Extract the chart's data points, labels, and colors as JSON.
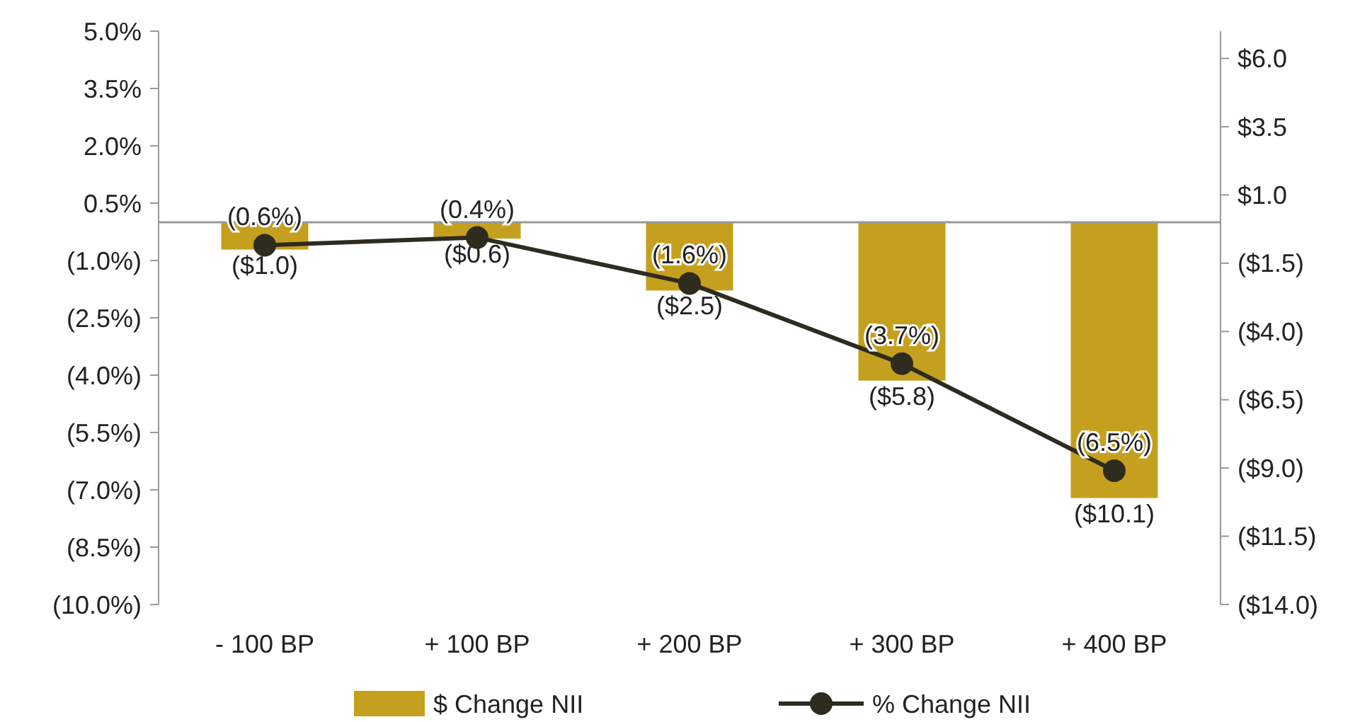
{
  "chart_data": {
    "type": "bar",
    "categories": [
      "- 100 BP",
      "+ 100 BP",
      "+ 200 BP",
      "+ 300 BP",
      "+ 400 BP"
    ],
    "series": [
      {
        "name": "$ Change NII",
        "axis": "y2",
        "color": "#c5a01f",
        "values": [
          -1.0,
          -0.6,
          -2.5,
          -5.8,
          -10.1
        ],
        "value_labels": [
          "($1.0)",
          "($0.6)",
          "($2.5)",
          "($5.8)",
          "($10.1)"
        ]
      },
      {
        "name": "% Change NII",
        "type": "line",
        "axis": "y",
        "color": "#2e2b1f",
        "values": [
          -0.6,
          -0.4,
          -1.6,
          -3.7,
          -6.5
        ],
        "value_labels": [
          "(0.6%)",
          "(0.4%)",
          "(1.6%)",
          "(3.7%)",
          "(6.5%)"
        ]
      }
    ],
    "ylim": [
      -10,
      5
    ],
    "yticks": [
      {
        "value": 5,
        "label": "5.0%"
      },
      {
        "value": 3.5,
        "label": "3.5%"
      },
      {
        "value": 2,
        "label": "2.0%"
      },
      {
        "value": 0.5,
        "label": "0.5%"
      },
      {
        "value": -1,
        "label": "(1.0%)"
      },
      {
        "value": -2.5,
        "label": "(2.5%)"
      },
      {
        "value": -4,
        "label": "(4.0%)"
      },
      {
        "value": -5.5,
        "label": "(5.5%)"
      },
      {
        "value": -7,
        "label": "(7.0%)"
      },
      {
        "value": -8.5,
        "label": "(8.5%)"
      },
      {
        "value": -10,
        "label": "(10.0%)"
      }
    ],
    "y2lim": [
      -14,
      7
    ],
    "y2ticks": [
      {
        "value": 6,
        "label": "$6.0"
      },
      {
        "value": 3.5,
        "label": "$3.5"
      },
      {
        "value": 1,
        "label": "$1.0"
      },
      {
        "value": -1.5,
        "label": "($1.5)"
      },
      {
        "value": -4,
        "label": "($4.0)"
      },
      {
        "value": -6.5,
        "label": "($6.5)"
      },
      {
        "value": -9,
        "label": "($9.0)"
      },
      {
        "value": -11.5,
        "label": "($11.5)"
      },
      {
        "value": -14,
        "label": "($14.0)"
      }
    ],
    "marker": "circle",
    "legend": "bottom"
  }
}
